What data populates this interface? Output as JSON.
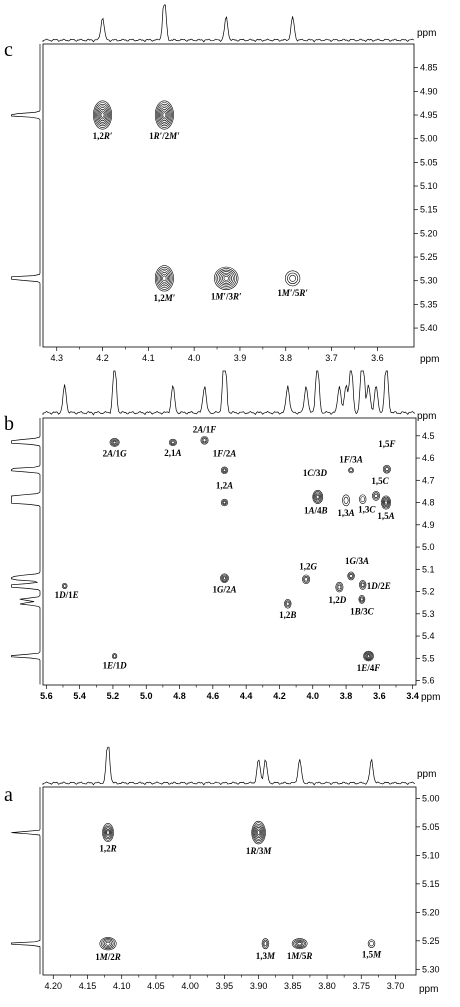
{
  "chart_data": [
    {
      "panel": "c",
      "type": "scatter",
      "x_unit": "ppm",
      "y_unit": "ppm",
      "xlim": [
        4.33,
        3.52
      ],
      "ylim": [
        4.8,
        5.44
      ],
      "x_ticks": [
        "4.3",
        "4.2",
        "4.1",
        "4.0",
        "3.9",
        "3.8",
        "3.7",
        "3.6"
      ],
      "x_tick_values": [
        4.3,
        4.2,
        4.1,
        4.0,
        3.9,
        3.8,
        3.7,
        3.6
      ],
      "y_ticks": [
        "4.85",
        "4.90",
        "4.95",
        "5.00",
        "5.05",
        "5.10",
        "5.15",
        "5.20",
        "5.25",
        "5.30",
        "5.35",
        "5.40"
      ],
      "y_tick_values": [
        4.85,
        4.9,
        4.95,
        5.0,
        5.05,
        5.1,
        5.15,
        5.2,
        5.25,
        5.3,
        5.35,
        5.4
      ],
      "cross_peaks": [
        {
          "label_main": "1,2",
          "label_italic": "R′",
          "x": 4.2,
          "y": 4.95,
          "rx": 0.02,
          "ry": 0.03,
          "rings": 8
        },
        {
          "label_main": "1",
          "label_italic": "R′",
          "label_mid": "/2",
          "label_italic2": "M′",
          "x": 4.065,
          "y": 4.95,
          "rx": 0.02,
          "ry": 0.03,
          "rings": 8
        },
        {
          "label_main": "1,2",
          "label_italic": "M′",
          "x": 4.065,
          "y": 5.295,
          "rx": 0.02,
          "ry": 0.027,
          "rings": 7
        },
        {
          "label_main": "1",
          "label_italic": "M′",
          "label_mid": "/3",
          "label_italic2": "R′",
          "x": 3.93,
          "y": 5.295,
          "rx": 0.026,
          "ry": 0.024,
          "rings": 7
        },
        {
          "label_main": "1",
          "label_italic": "M′",
          "label_mid": "/5",
          "label_italic2": "R′",
          "x": 3.785,
          "y": 5.295,
          "rx": 0.016,
          "ry": 0.016,
          "rings": 3
        }
      ]
    },
    {
      "panel": "b",
      "type": "scatter",
      "x_unit": "ppm",
      "y_unit": "ppm",
      "xlim": [
        5.62,
        3.38
      ],
      "ylim": [
        4.42,
        5.62
      ],
      "x_ticks": [
        "5.6",
        "5.4",
        "5.2",
        "5.0",
        "4.8",
        "4.6",
        "4.4",
        "4.2",
        "4.0",
        "3.8",
        "3.6",
        "3.4"
      ],
      "x_tick_values": [
        5.6,
        5.4,
        5.2,
        5.0,
        4.8,
        4.6,
        4.4,
        4.2,
        4.0,
        3.8,
        3.6,
        3.4
      ],
      "y_ticks": [
        "4.5",
        "4.6",
        "4.7",
        "4.8",
        "4.9",
        "5.0",
        "5.1",
        "5.2",
        "5.3",
        "5.4",
        "5.5",
        "5.6"
      ],
      "y_tick_values": [
        4.5,
        4.6,
        4.7,
        4.8,
        4.9,
        5.0,
        5.1,
        5.2,
        5.3,
        5.4,
        5.5,
        5.6
      ],
      "cross_peaks": [
        {
          "label_main": "2",
          "label_italic": "A",
          "label_mid": "/1",
          "label_italic2": "G",
          "x": 5.19,
          "y": 4.53,
          "rx": 0.028,
          "ry": 0.018,
          "rings": 4
        },
        {
          "label_main": "2,1",
          "label_italic": "A",
          "x": 4.84,
          "y": 4.53,
          "rx": 0.022,
          "ry": 0.015,
          "rings": 3
        },
        {
          "label_main": "2",
          "label_italic": "A",
          "label_mid": "/1",
          "label_italic2": "F",
          "x": 4.65,
          "y": 4.52,
          "rx": 0.022,
          "ry": 0.018,
          "rings": 3
        },
        {
          "label_main": "1",
          "label_italic": "F",
          "label_mid": "/2",
          "label_italic2": "A",
          "x": 4.53,
          "y": 4.655,
          "rx": 0.02,
          "ry": 0.015,
          "rings": 3
        },
        {
          "label_main": "1,2",
          "label_italic": "A",
          "x": 4.53,
          "y": 4.8,
          "rx": 0.02,
          "ry": 0.015,
          "rings": 3
        },
        {
          "label_main": "1",
          "label_italic": "F",
          "label_mid": "/3",
          "label_italic2": "A",
          "x": 3.77,
          "y": 4.655,
          "rx": 0.015,
          "ry": 0.012,
          "rings": 2
        },
        {
          "label_main": "1,5",
          "label_italic": "F",
          "x": 3.555,
          "y": 4.65,
          "rx": 0.022,
          "ry": 0.018,
          "rings": 3
        },
        {
          "label_main": "1",
          "label_italic": "A",
          "label_mid": "/4",
          "label_italic2": "B",
          "x": 3.97,
          "y": 4.775,
          "rx": 0.03,
          "ry": 0.03,
          "rings": 5
        },
        {
          "label_main": "1",
          "label_italic": "C",
          "label_mid": "/3",
          "label_italic2": "D",
          "x": 3.975,
          "y": 4.78,
          "rx": 0.0,
          "ry": 0.0,
          "rings": 0
        },
        {
          "label_main": "1,3",
          "label_italic": "A",
          "x": 3.8,
          "y": 4.79,
          "rx": 0.022,
          "ry": 0.025,
          "rings": 2
        },
        {
          "label_main": "1,5",
          "label_italic": "C",
          "x": 3.62,
          "y": 4.77,
          "rx": 0.022,
          "ry": 0.02,
          "rings": 3
        },
        {
          "label_main": "1,3",
          "label_italic": "C",
          "x": 3.7,
          "y": 4.785,
          "rx": 0.02,
          "ry": 0.02,
          "rings": 2
        },
        {
          "label_main": "1,5",
          "label_italic": "A",
          "x": 3.56,
          "y": 4.8,
          "rx": 0.028,
          "ry": 0.03,
          "rings": 5
        },
        {
          "label_main": "1",
          "label_italic": "D",
          "label_mid": "/1",
          "label_italic2": "E",
          "x": 5.49,
          "y": 5.175,
          "rx": 0.015,
          "ry": 0.012,
          "rings": 2
        },
        {
          "label_main": "1",
          "label_italic": "G",
          "label_mid": "/2",
          "label_italic2": "A",
          "x": 4.53,
          "y": 5.14,
          "rx": 0.024,
          "ry": 0.02,
          "rings": 4
        },
        {
          "label_main": "1,2",
          "label_italic": "G",
          "x": 4.04,
          "y": 5.145,
          "rx": 0.022,
          "ry": 0.02,
          "rings": 3
        },
        {
          "label_main": "1",
          "label_italic": "G",
          "label_mid": "/3",
          "label_italic2": "A",
          "x": 3.77,
          "y": 5.13,
          "rx": 0.02,
          "ry": 0.018,
          "rings": 3
        },
        {
          "label_main": "1,2",
          "label_italic": "D",
          "x": 3.84,
          "y": 5.18,
          "rx": 0.022,
          "ry": 0.022,
          "rings": 3
        },
        {
          "label_main": "1",
          "label_italic": "D",
          "label_mid": "/2",
          "label_italic2": "E",
          "x": 3.7,
          "y": 5.17,
          "rx": 0.02,
          "ry": 0.02,
          "rings": 3
        },
        {
          "label_main": "1",
          "label_italic": "B",
          "label_mid": "/3",
          "label_italic2": "C",
          "x": 3.705,
          "y": 5.235,
          "rx": 0.018,
          "ry": 0.018,
          "rings": 3
        },
        {
          "label_main": "1,2",
          "label_italic": "B",
          "x": 4.15,
          "y": 5.255,
          "rx": 0.02,
          "ry": 0.02,
          "rings": 3
        },
        {
          "label_main": "1",
          "label_italic": "E",
          "label_mid": "/1",
          "label_italic2": "D",
          "x": 5.19,
          "y": 5.49,
          "rx": 0.014,
          "ry": 0.012,
          "rings": 2
        },
        {
          "label_main": "1",
          "label_italic": "E",
          "label_mid": "/4",
          "label_italic2": "F",
          "x": 3.665,
          "y": 5.49,
          "rx": 0.03,
          "ry": 0.022,
          "rings": 5
        }
      ]
    },
    {
      "panel": "a",
      "type": "scatter",
      "x_unit": "ppm",
      "y_unit": "ppm",
      "xlim": [
        4.215,
        3.67
      ],
      "ylim": [
        4.98,
        5.31
      ],
      "x_ticks": [
        "4.20",
        "4.15",
        "4.10",
        "4.05",
        "4.00",
        "3.95",
        "3.90",
        "3.85",
        "3.80",
        "3.75",
        "3.70"
      ],
      "x_tick_values": [
        4.2,
        4.15,
        4.1,
        4.05,
        4.0,
        3.95,
        3.9,
        3.85,
        3.8,
        3.75,
        3.7
      ],
      "y_ticks": [
        "5.00",
        "5.05",
        "5.10",
        "5.15",
        "5.20",
        "5.25",
        "5.30"
      ],
      "y_tick_values": [
        5.0,
        5.05,
        5.1,
        5.15,
        5.2,
        5.25,
        5.3
      ],
      "cross_peaks": [
        {
          "label_main": "1,2",
          "label_italic": "R",
          "x": 4.12,
          "y": 5.06,
          "rx": 0.008,
          "ry": 0.016,
          "rings": 6
        },
        {
          "label_main": "1",
          "label_italic": "R",
          "label_mid": "/3",
          "label_italic2": "M",
          "x": 3.9,
          "y": 5.06,
          "rx": 0.01,
          "ry": 0.02,
          "rings": 7
        },
        {
          "label_main": "1",
          "label_italic": "M",
          "label_mid": "/2",
          "label_italic2": "R",
          "x": 4.12,
          "y": 5.255,
          "rx": 0.012,
          "ry": 0.011,
          "rings": 5
        },
        {
          "label_main": "1,3",
          "label_italic": "M",
          "x": 3.89,
          "y": 5.255,
          "rx": 0.005,
          "ry": 0.009,
          "rings": 3
        },
        {
          "label_main": "1",
          "label_italic": "M",
          "label_mid": "/5",
          "label_italic2": "R",
          "x": 3.84,
          "y": 5.255,
          "rx": 0.011,
          "ry": 0.009,
          "rings": 5
        },
        {
          "label_main": "1,5",
          "label_italic": "M",
          "x": 3.735,
          "y": 5.255,
          "rx": 0.005,
          "ry": 0.007,
          "rings": 2
        }
      ]
    }
  ],
  "panels": {
    "c": {
      "letter": "c",
      "unit": "ppm"
    },
    "b": {
      "letter": "b",
      "unit": "ppm"
    },
    "a": {
      "letter": "a",
      "unit": "ppm"
    }
  }
}
